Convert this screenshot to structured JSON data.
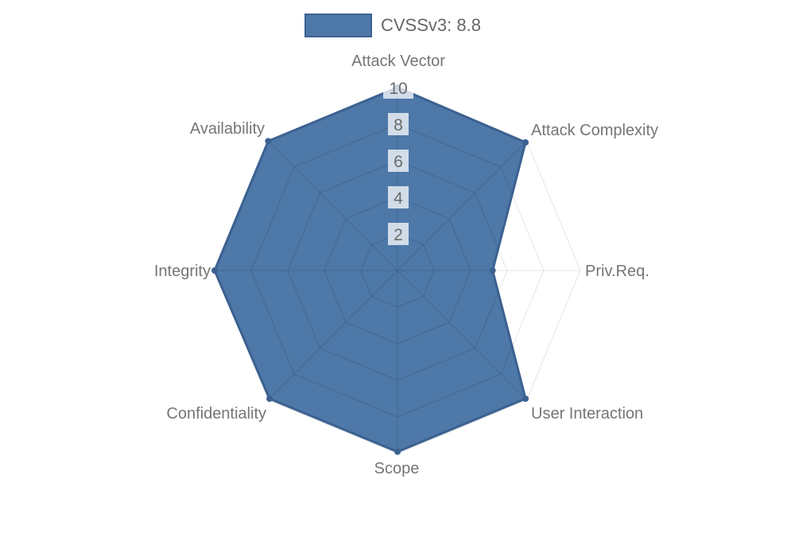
{
  "legend": {
    "position": "top",
    "items": [
      {
        "label": "CVSSv3: 8.8",
        "swatch_color": "#4d78a8",
        "swatch_border_color": "#3c6191"
      }
    ]
  },
  "chart_data": {
    "type": "radar",
    "title": "",
    "categories": [
      "Attack Vector",
      "Attack Complexity",
      "Priv.Req.",
      "User Interaction",
      "Scope",
      "Confidentiality",
      "Integrity",
      "Availability"
    ],
    "series": [
      {
        "name": "CVSSv3: 8.8",
        "values": [
          10,
          9.9,
          5.2,
          9.9,
          9.9,
          9.9,
          10,
          10
        ]
      }
    ],
    "scale": {
      "min": 0,
      "max": 10,
      "ticks": [
        2,
        4,
        6,
        8,
        10
      ],
      "grid": true,
      "start_axis": "top",
      "direction": "clockwise"
    },
    "legend_position": "top",
    "colors": {
      "fill": "#4d78a8",
      "border": "#3c6191",
      "grid_line": "rgba(0,0,0,0.10)",
      "inner_grid_line": "rgba(0,0,0,0.13)",
      "tick_text": "#6b6b6b",
      "tick_backdrop": "rgba(255,255,255,0.75)",
      "label_text": "#757575",
      "background": "#ffffff"
    }
  }
}
